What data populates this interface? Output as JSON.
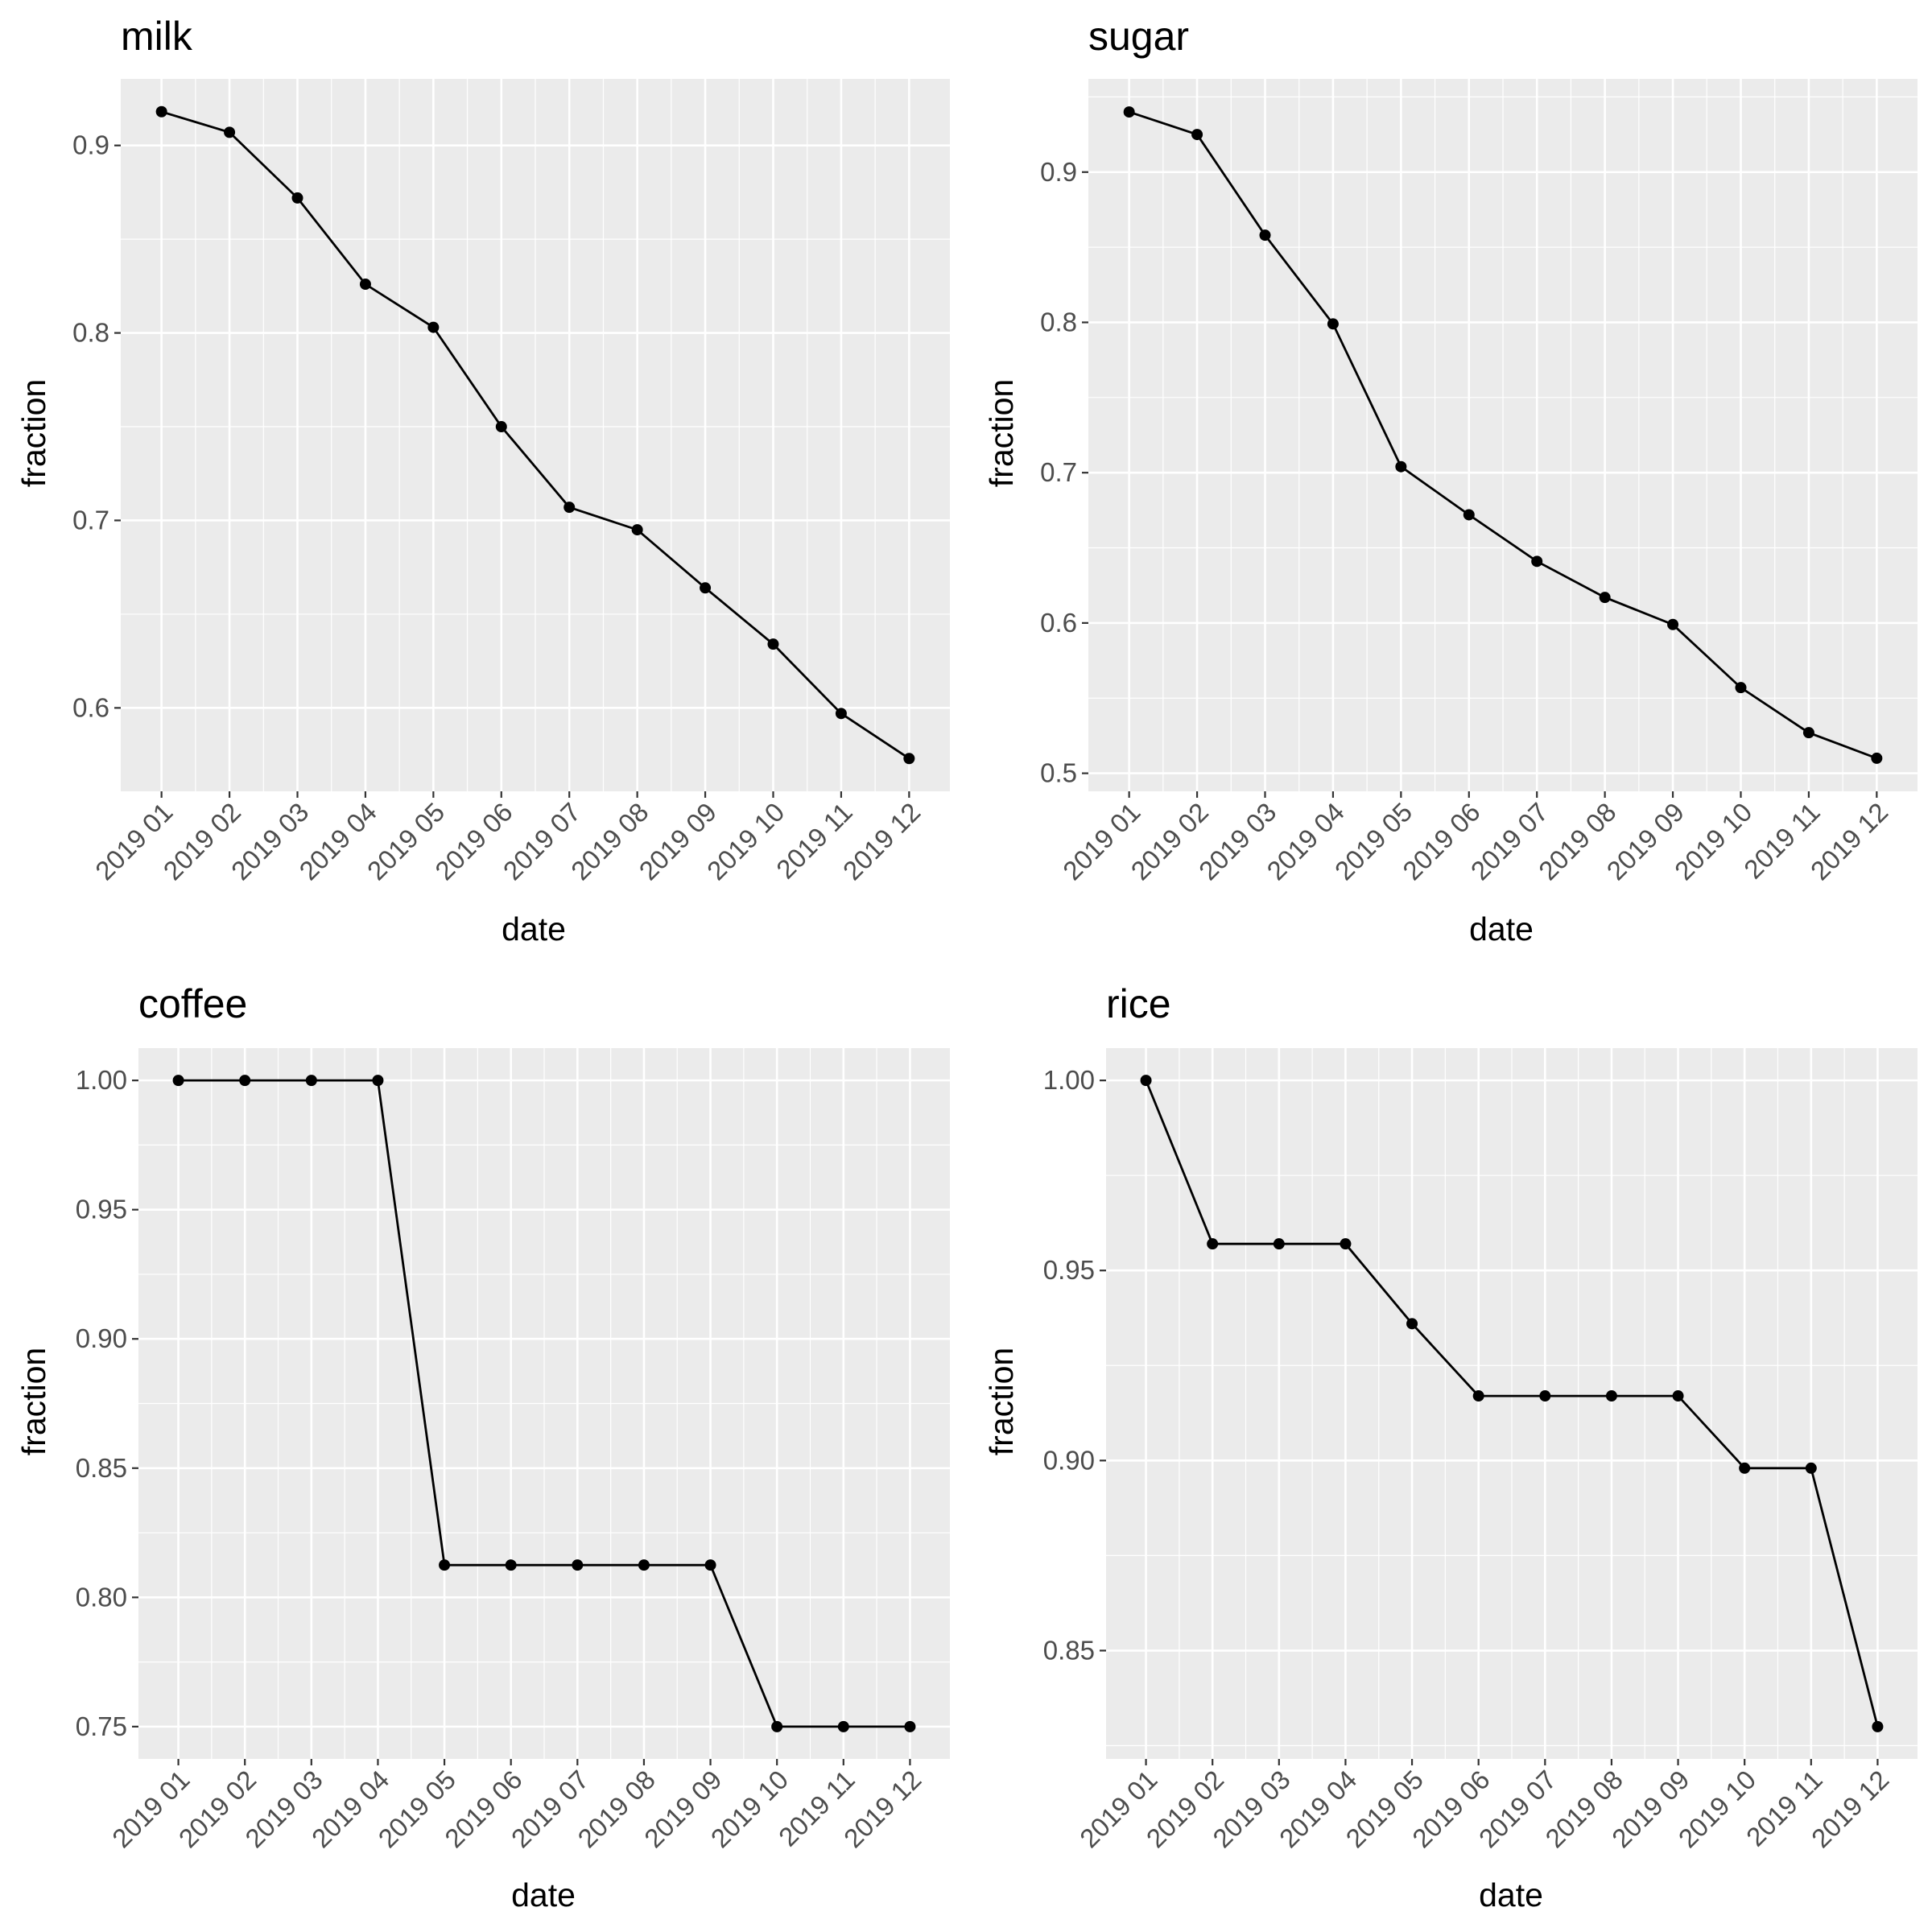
{
  "chart_data": [
    {
      "type": "line",
      "title": "milk",
      "xlabel": "date",
      "ylabel": "fraction",
      "x": [
        "2019 01",
        "2019 02",
        "2019 03",
        "2019 04",
        "2019 05",
        "2019 06",
        "2019 07",
        "2019 08",
        "2019 09",
        "2019 10",
        "2019 11",
        "2019 12"
      ],
      "values": [
        0.918,
        0.907,
        0.872,
        0.826,
        0.803,
        0.75,
        0.707,
        0.695,
        0.664,
        0.634,
        0.597,
        0.573
      ],
      "yticks": [
        0.6,
        0.7,
        0.8,
        0.9
      ],
      "ytick_labels": [
        "0.6",
        "0.7",
        "0.8",
        "0.9"
      ],
      "ylim": [
        0.5555,
        0.9355
      ],
      "grid": true,
      "legend": "none"
    },
    {
      "type": "line",
      "title": "sugar",
      "xlabel": "date",
      "ylabel": "fraction",
      "x": [
        "2019 01",
        "2019 02",
        "2019 03",
        "2019 04",
        "2019 05",
        "2019 06",
        "2019 07",
        "2019 08",
        "2019 09",
        "2019 10",
        "2019 11",
        "2019 12"
      ],
      "values": [
        0.94,
        0.925,
        0.858,
        0.799,
        0.704,
        0.672,
        0.641,
        0.617,
        0.599,
        0.557,
        0.527,
        0.51
      ],
      "yticks": [
        0.5,
        0.6,
        0.7,
        0.8,
        0.9
      ],
      "ytick_labels": [
        "0.5",
        "0.6",
        "0.7",
        "0.8",
        "0.9"
      ],
      "ylim": [
        0.488,
        0.962
      ],
      "grid": true,
      "legend": "none"
    },
    {
      "type": "line",
      "title": "coffee",
      "xlabel": "date",
      "ylabel": "fraction",
      "x": [
        "2019 01",
        "2019 02",
        "2019 03",
        "2019 04",
        "2019 05",
        "2019 06",
        "2019 07",
        "2019 08",
        "2019 09",
        "2019 10",
        "2019 11",
        "2019 12"
      ],
      "values": [
        1.0,
        1.0,
        1.0,
        1.0,
        0.8125,
        0.8125,
        0.8125,
        0.8125,
        0.8125,
        0.75,
        0.75,
        0.75
      ],
      "yticks": [
        0.75,
        0.8,
        0.85,
        0.9,
        0.95,
        1.0
      ],
      "ytick_labels": [
        "0.75",
        "0.80",
        "0.85",
        "0.90",
        "0.95",
        "1.00"
      ],
      "ylim": [
        0.7375,
        1.0125
      ],
      "grid": true,
      "legend": "none"
    },
    {
      "type": "line",
      "title": "rice",
      "xlabel": "date",
      "ylabel": "fraction",
      "x": [
        "2019 01",
        "2019 02",
        "2019 03",
        "2019 04",
        "2019 05",
        "2019 06",
        "2019 07",
        "2019 08",
        "2019 09",
        "2019 10",
        "2019 11",
        "2019 12"
      ],
      "values": [
        1.0,
        0.957,
        0.957,
        0.957,
        0.936,
        0.917,
        0.917,
        0.917,
        0.917,
        0.898,
        0.898,
        0.83
      ],
      "yticks": [
        0.85,
        0.9,
        0.95,
        1.0
      ],
      "ytick_labels": [
        "0.85",
        "0.90",
        "0.95",
        "1.00"
      ],
      "ylim": [
        0.8215,
        1.0085
      ],
      "grid": true,
      "legend": "none"
    }
  ]
}
